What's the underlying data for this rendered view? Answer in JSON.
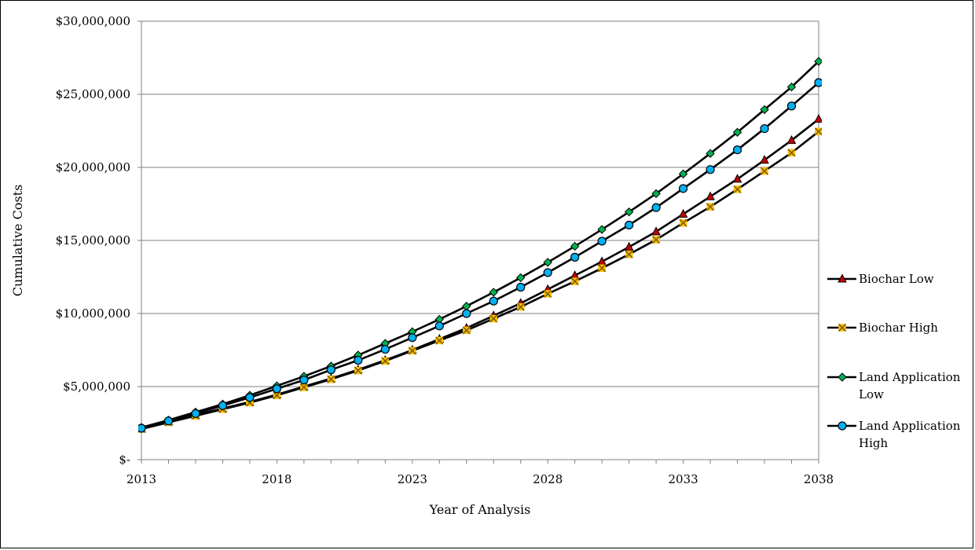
{
  "chart_data": {
    "type": "line",
    "title": "",
    "xlabel": "Year of Analysis",
    "ylabel": "Cumulative Costs",
    "x": [
      2013,
      2014,
      2015,
      2016,
      2017,
      2018,
      2019,
      2020,
      2021,
      2022,
      2023,
      2024,
      2025,
      2026,
      2027,
      2028,
      2029,
      2030,
      2031,
      2032,
      2033,
      2034,
      2035,
      2036,
      2037,
      2038
    ],
    "xlim": [
      2013,
      2038
    ],
    "ylim": [
      0,
      30000000
    ],
    "x_ticks": [
      2013,
      2018,
      2023,
      2028,
      2033,
      2038
    ],
    "x_tick_labels": [
      "2013",
      "2018",
      "2023",
      "2028",
      "2033",
      "2038"
    ],
    "y_ticks": [
      0,
      5000000,
      10000000,
      15000000,
      20000000,
      25000000,
      30000000
    ],
    "y_tick_labels": [
      "$-",
      "$5,000,000",
      "$10,000,000",
      "$15,000,000",
      "$20,000,000",
      "$25,000,000",
      "$30,000,000"
    ],
    "grid": "horizontal",
    "legend_position": "right",
    "series": [
      {
        "name": "Biochar Low",
        "color": "#c00000",
        "marker": "triangle",
        "values": [
          2100000,
          2600000,
          3050000,
          3500000,
          3950000,
          4450000,
          5000000,
          5550000,
          6150000,
          6800000,
          7500000,
          8250000,
          9000000,
          9850000,
          10700000,
          11650000,
          12600000,
          13550000,
          14550000,
          15600000,
          16800000,
          18000000,
          19200000,
          20500000,
          21850000,
          23300000
        ]
      },
      {
        "name": "Biochar High",
        "color": "#ffc000",
        "marker": "x-square",
        "values": [
          2100000,
          2550000,
          3000000,
          3450000,
          3900000,
          4400000,
          4950000,
          5500000,
          6100000,
          6750000,
          7450000,
          8150000,
          8850000,
          9650000,
          10450000,
          11350000,
          12200000,
          13100000,
          14050000,
          15050000,
          16200000,
          17300000,
          18500000,
          19750000,
          21000000,
          22450000
        ]
      },
      {
        "name": "Land Application Low",
        "color": "#00b050",
        "marker": "diamond",
        "values": [
          2200000,
          2700000,
          3250000,
          3800000,
          4400000,
          5050000,
          5700000,
          6400000,
          7150000,
          7950000,
          8750000,
          9600000,
          10500000,
          11450000,
          12450000,
          13500000,
          14600000,
          15750000,
          16950000,
          18200000,
          19550000,
          20950000,
          22400000,
          23950000,
          25500000,
          27250000
        ]
      },
      {
        "name": "Land Application High",
        "color": "#00b0f0",
        "marker": "circle",
        "values": [
          2150000,
          2650000,
          3150000,
          3700000,
          4250000,
          4850000,
          5450000,
          6150000,
          6800000,
          7550000,
          8350000,
          9150000,
          10000000,
          10850000,
          11800000,
          12800000,
          13850000,
          14950000,
          16050000,
          17250000,
          18550000,
          19850000,
          21200000,
          22650000,
          24200000,
          25800000
        ]
      }
    ]
  },
  "legend": {
    "items": [
      {
        "line1": "Biochar Low",
        "line2": ""
      },
      {
        "line1": "Biochar High",
        "line2": ""
      },
      {
        "line1": "Land Application",
        "line2": "Low"
      },
      {
        "line1": "Land Application",
        "line2": "High"
      }
    ]
  }
}
